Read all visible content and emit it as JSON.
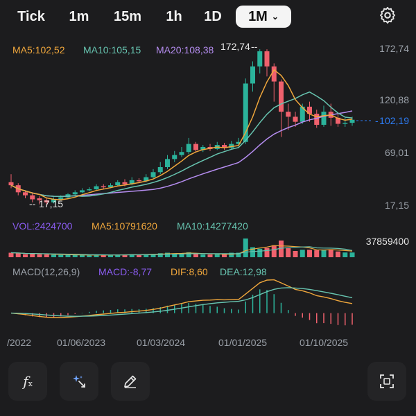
{
  "timeframes": [
    "Tick",
    "1m",
    "15m",
    "1h",
    "1D",
    "1M"
  ],
  "active_timeframe": "1M",
  "icons": {
    "settings": "gear-icon",
    "chevron": "chevron-down-icon",
    "indicators": "function-fx-icon",
    "ai_tools": "sparkle-magic-icon",
    "drawing": "pencil-icon",
    "fullscreen": "fullscreen-icon"
  },
  "colors": {
    "up": "#2bb39b",
    "down": "#f0616d",
    "ma5": "#f0a73c",
    "ma10": "#67c4b0",
    "ma20": "#b58df0",
    "vol_label": "#8a5cf0",
    "macd_label": "#8a5cf0",
    "dif": "#f0a73c",
    "dea": "#67c4b0",
    "axis_text": "#9aa0a8",
    "current_price": "#2d7df6"
  },
  "price_panel": {
    "ma_legend": [
      {
        "label": "MA5:102,52"
      },
      {
        "label": "MA10:105,15"
      },
      {
        "label": "MA20:108,38"
      }
    ],
    "y_labels": [
      "172,74",
      "120,88",
      "69,01",
      "17,15"
    ],
    "current_price": "102,19",
    "high_label": "172,74",
    "low_label": "17,15"
  },
  "volume_panel": {
    "legend": [
      "VOL:2424700",
      "MA5:10791620",
      "MA10:14277420"
    ],
    "max_label": "37859400"
  },
  "macd_panel": {
    "legend": [
      "MACD(12,26,9)",
      "MACD:-8,77",
      "DIF:8,60",
      "DEA:12,98"
    ]
  },
  "x_axis": [
    "/2022",
    "01/06/2023",
    "01/03/2024",
    "01/01/2025",
    "01/10/2025"
  ],
  "chart_data": {
    "type": "candlestick",
    "ohlc": [
      [
        40,
        37,
        48,
        34
      ],
      [
        37,
        30,
        39,
        27
      ],
      [
        30,
        27,
        32,
        24
      ],
      [
        27,
        23,
        30,
        20
      ],
      [
        24,
        22,
        26,
        18
      ],
      [
        22,
        20,
        24,
        17
      ],
      [
        20,
        23,
        25,
        19
      ],
      [
        23,
        25,
        27,
        22
      ],
      [
        25,
        28,
        29,
        24
      ],
      [
        28,
        30,
        32,
        27
      ],
      [
        30,
        32,
        34,
        29
      ],
      [
        32,
        33,
        35,
        31
      ],
      [
        33,
        36,
        38,
        32
      ],
      [
        36,
        35,
        38,
        33
      ],
      [
        35,
        37,
        39,
        34
      ],
      [
        37,
        40,
        42,
        36
      ],
      [
        40,
        38,
        43,
        36
      ],
      [
        38,
        42,
        45,
        37
      ],
      [
        42,
        41,
        44,
        39
      ],
      [
        41,
        45,
        48,
        40
      ],
      [
        45,
        50,
        53,
        44
      ],
      [
        50,
        55,
        60,
        48
      ],
      [
        55,
        63,
        67,
        53
      ],
      [
        63,
        67,
        71,
        60
      ],
      [
        67,
        70,
        75,
        65
      ],
      [
        70,
        78,
        84,
        68
      ],
      [
        78,
        72,
        80,
        70
      ],
      [
        72,
        75,
        77,
        70
      ],
      [
        75,
        73,
        78,
        71
      ],
      [
        73,
        77,
        80,
        72
      ],
      [
        77,
        74,
        79,
        72
      ],
      [
        74,
        78,
        81,
        73
      ],
      [
        78,
        80,
        84,
        76
      ],
      [
        80,
        138,
        143,
        78
      ],
      [
        138,
        155,
        160,
        130
      ],
      [
        155,
        170,
        172,
        148
      ],
      [
        170,
        155,
        172,
        145
      ],
      [
        155,
        140,
        158,
        120
      ],
      [
        140,
        110,
        142,
        85
      ],
      [
        110,
        105,
        118,
        92
      ],
      [
        105,
        100,
        110,
        95
      ],
      [
        100,
        115,
        118,
        98
      ],
      [
        115,
        108,
        120,
        100
      ],
      [
        108,
        97,
        112,
        94
      ],
      [
        97,
        110,
        116,
        95
      ],
      [
        110,
        104,
        118,
        96
      ],
      [
        104,
        98,
        108,
        95
      ],
      [
        98,
        99,
        104,
        95
      ],
      [
        99,
        102,
        105,
        96
      ]
    ],
    "volume_shown_by_height": true,
    "price_range": [
      17.15,
      172.74
    ]
  }
}
